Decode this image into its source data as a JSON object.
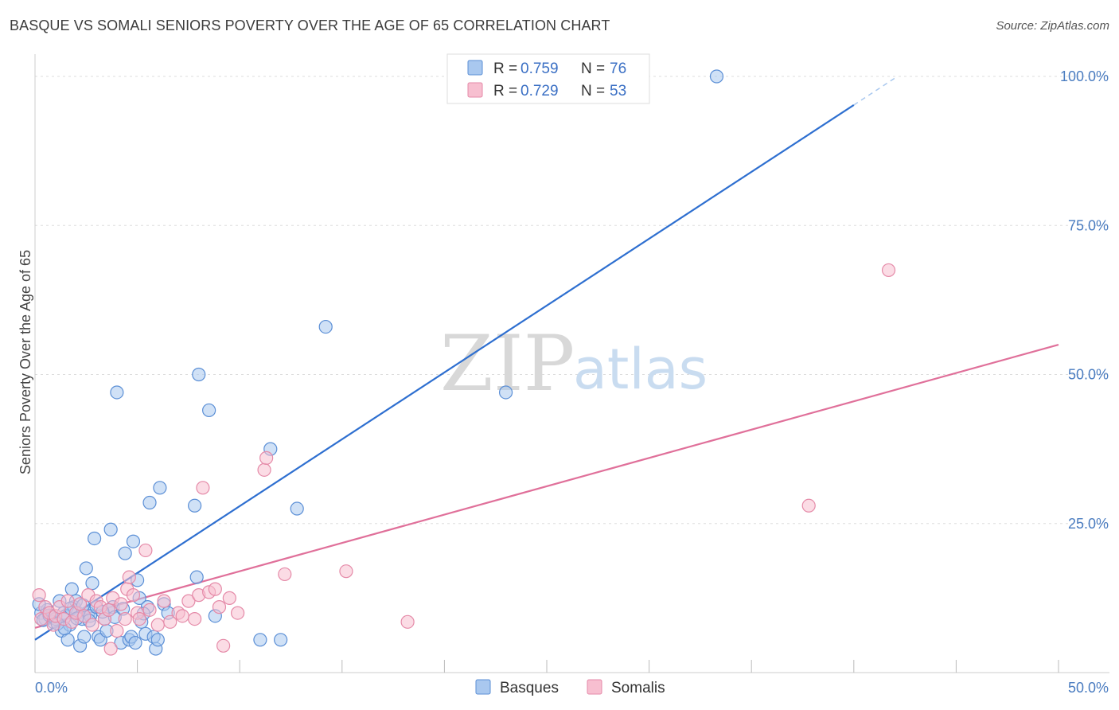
{
  "title": "BASQUE VS SOMALI SENIORS POVERTY OVER THE AGE OF 65 CORRELATION CHART",
  "source": "Source: ZipAtlas.com",
  "watermark": {
    "zip": "ZIP",
    "atlas": "atlas"
  },
  "colors": {
    "basques_fill": "#a9c8ef",
    "basques_stroke": "#5b8fd6",
    "basques_line": "#2e6fd0",
    "somalis_fill": "#f7bfd0",
    "somalis_stroke": "#e58aa8",
    "somalis_line": "#e0709a",
    "axis_label": "#4a7cc0",
    "grid": "#dddddd"
  },
  "legend": {
    "r_label": "R =",
    "n_label": "N =",
    "rows": [
      {
        "name": "Basques",
        "r": "0.759",
        "n": "76"
      },
      {
        "name": "Somalis",
        "r": "0.729",
        "n": "53"
      }
    ]
  },
  "bottom_legend": [
    "Basques",
    "Somalis"
  ],
  "chart_data": {
    "type": "scatter",
    "title": "BASQUE VS SOMALI SENIORS POVERTY OVER THE AGE OF 65 CORRELATION CHART",
    "xlabel": "",
    "ylabel": "Seniors Poverty Over the Age of 65",
    "xlim": [
      0,
      50
    ],
    "ylim": [
      0,
      100
    ],
    "x_tick_labels": [
      "0.0%",
      "50.0%"
    ],
    "y_tick_labels": [
      "100.0%",
      "75.0%",
      "50.0%",
      "25.0%"
    ],
    "y_tick_values": [
      100,
      75,
      50,
      25
    ],
    "grid": true,
    "series": [
      {
        "name": "Basques",
        "r": 0.759,
        "n": 76,
        "trend": {
          "x": [
            0,
            40
          ],
          "y": [
            5.5,
            95.2
          ],
          "dashed_to": [
            42,
            99.7
          ]
        },
        "points": [
          [
            0.3,
            10
          ],
          [
            0.5,
            9
          ],
          [
            0.6,
            10.5
          ],
          [
            0.8,
            9.5
          ],
          [
            0.9,
            8.5
          ],
          [
            1.0,
            9
          ],
          [
            1.2,
            12
          ],
          [
            1.3,
            7
          ],
          [
            1.4,
            10
          ],
          [
            1.5,
            9.5
          ],
          [
            1.6,
            5.5
          ],
          [
            1.7,
            8
          ],
          [
            1.8,
            14
          ],
          [
            1.9,
            11
          ],
          [
            2.0,
            12
          ],
          [
            2.1,
            10
          ],
          [
            2.2,
            4.5
          ],
          [
            2.3,
            9
          ],
          [
            2.4,
            6
          ],
          [
            2.5,
            17.5
          ],
          [
            2.6,
            10
          ],
          [
            2.7,
            9.5
          ],
          [
            2.8,
            15
          ],
          [
            2.9,
            22.5
          ],
          [
            3.0,
            11
          ],
          [
            3.1,
            6
          ],
          [
            3.2,
            5.5
          ],
          [
            3.4,
            9
          ],
          [
            3.5,
            7
          ],
          [
            3.6,
            10.5
          ],
          [
            3.7,
            24
          ],
          [
            3.8,
            11
          ],
          [
            4.0,
            47
          ],
          [
            4.2,
            5
          ],
          [
            4.4,
            20
          ],
          [
            4.6,
            5.5
          ],
          [
            4.7,
            6
          ],
          [
            4.8,
            22
          ],
          [
            4.9,
            5
          ],
          [
            5.0,
            15.5
          ],
          [
            5.1,
            12.5
          ],
          [
            5.2,
            8.5
          ],
          [
            5.4,
            6.5
          ],
          [
            5.5,
            11
          ],
          [
            5.6,
            28.5
          ],
          [
            5.8,
            6
          ],
          [
            5.9,
            4
          ],
          [
            6.0,
            5.5
          ],
          [
            6.1,
            31
          ],
          [
            6.3,
            11.5
          ],
          [
            6.5,
            10
          ],
          [
            7.8,
            28
          ],
          [
            7.9,
            16
          ],
          [
            8.0,
            50
          ],
          [
            8.5,
            44
          ],
          [
            8.8,
            9.5
          ],
          [
            11.0,
            5.5
          ],
          [
            11.5,
            37.5
          ],
          [
            12.0,
            5.5
          ],
          [
            12.8,
            27.5
          ],
          [
            14.2,
            58
          ],
          [
            23.0,
            47
          ],
          [
            33.3,
            100
          ],
          [
            0.4,
            8.8
          ],
          [
            0.7,
            9.6
          ],
          [
            1.1,
            8.2
          ],
          [
            1.45,
            7.4
          ],
          [
            1.75,
            10.8
          ],
          [
            2.05,
            9.1
          ],
          [
            2.35,
            11.3
          ],
          [
            2.65,
            8.7
          ],
          [
            3.3,
            10.2
          ],
          [
            3.9,
            9.3
          ],
          [
            4.3,
            10.7
          ],
          [
            5.3,
            9.9
          ],
          [
            0.2,
            11.5
          ]
        ]
      },
      {
        "name": "Somalis",
        "r": 0.729,
        "n": 53,
        "trend": {
          "x": [
            0,
            50
          ],
          "y": [
            7.5,
            55
          ]
        },
        "points": [
          [
            0.2,
            13
          ],
          [
            0.3,
            9
          ],
          [
            0.5,
            11
          ],
          [
            0.7,
            10
          ],
          [
            0.9,
            8
          ],
          [
            1.0,
            9.5
          ],
          [
            1.2,
            11
          ],
          [
            1.4,
            9
          ],
          [
            1.6,
            12
          ],
          [
            1.8,
            8.5
          ],
          [
            2.0,
            10
          ],
          [
            2.2,
            11.5
          ],
          [
            2.4,
            9.5
          ],
          [
            2.6,
            13
          ],
          [
            2.8,
            8
          ],
          [
            3.0,
            12
          ],
          [
            3.2,
            11
          ],
          [
            3.4,
            9
          ],
          [
            3.6,
            10.5
          ],
          [
            3.7,
            4
          ],
          [
            3.8,
            12.5
          ],
          [
            4.0,
            7
          ],
          [
            4.2,
            11.5
          ],
          [
            4.4,
            9
          ],
          [
            4.5,
            14
          ],
          [
            4.6,
            16
          ],
          [
            4.8,
            13
          ],
          [
            5.0,
            10
          ],
          [
            5.1,
            9
          ],
          [
            5.4,
            20.5
          ],
          [
            5.6,
            10.5
          ],
          [
            6.0,
            8
          ],
          [
            6.3,
            12
          ],
          [
            6.6,
            8.5
          ],
          [
            7.0,
            10
          ],
          [
            7.2,
            9.5
          ],
          [
            7.5,
            12
          ],
          [
            7.8,
            9
          ],
          [
            8.0,
            13
          ],
          [
            8.2,
            31
          ],
          [
            8.5,
            13.5
          ],
          [
            8.8,
            14
          ],
          [
            9.0,
            11
          ],
          [
            9.2,
            4.5
          ],
          [
            9.5,
            12.5
          ],
          [
            9.9,
            10
          ],
          [
            11.2,
            34
          ],
          [
            11.3,
            36
          ],
          [
            12.2,
            16.5
          ],
          [
            15.2,
            17
          ],
          [
            18.2,
            8.5
          ],
          [
            37.8,
            28
          ],
          [
            41.7,
            67.5
          ]
        ]
      }
    ]
  }
}
